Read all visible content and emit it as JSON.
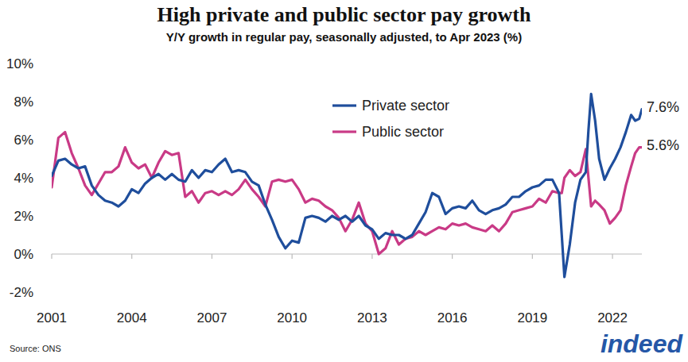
{
  "chart_data": {
    "type": "line",
    "title": "High private and public sector pay growth",
    "subtitle": "Y/Y growth in regular pay, seasonally adjusted, to Apr 2023 (%)",
    "source": "Source: ONS",
    "logo": "indeed",
    "x": [
      2001.0,
      2001.25,
      2001.5,
      2001.75,
      2002.0,
      2002.25,
      2002.5,
      2002.75,
      2003.0,
      2003.25,
      2003.5,
      2003.75,
      2004.0,
      2004.25,
      2004.5,
      2004.75,
      2005.0,
      2005.25,
      2005.5,
      2005.75,
      2006.0,
      2006.25,
      2006.5,
      2006.75,
      2007.0,
      2007.25,
      2007.5,
      2007.75,
      2008.0,
      2008.25,
      2008.5,
      2008.75,
      2009.0,
      2009.25,
      2009.5,
      2009.75,
      2010.0,
      2010.25,
      2010.5,
      2010.75,
      2011.0,
      2011.25,
      2011.5,
      2011.75,
      2012.0,
      2012.25,
      2012.5,
      2012.75,
      2013.0,
      2013.25,
      2013.5,
      2013.75,
      2014.0,
      2014.25,
      2014.5,
      2014.75,
      2015.0,
      2015.25,
      2015.5,
      2015.75,
      2016.0,
      2016.25,
      2016.5,
      2016.75,
      2017.0,
      2017.25,
      2017.5,
      2017.75,
      2018.0,
      2018.25,
      2018.5,
      2018.75,
      2019.0,
      2019.25,
      2019.5,
      2019.75,
      2020.0,
      2020.1,
      2020.2,
      2020.4,
      2020.6,
      2020.8,
      2021.0,
      2021.1,
      2021.2,
      2021.35,
      2021.5,
      2021.7,
      2021.9,
      2022.1,
      2022.3,
      2022.5,
      2022.7,
      2022.85,
      2023.0,
      2023.1
    ],
    "series": [
      {
        "name": "Private sector",
        "color": "#1f4e9c",
        "values": [
          4.1,
          4.9,
          5.0,
          4.7,
          4.5,
          4.6,
          3.6,
          3.1,
          2.8,
          2.7,
          2.5,
          2.8,
          3.4,
          3.2,
          3.7,
          4.0,
          4.2,
          3.9,
          4.2,
          3.9,
          3.8,
          4.4,
          4.0,
          4.4,
          4.3,
          4.7,
          5.0,
          4.3,
          4.4,
          4.3,
          3.8,
          3.6,
          2.6,
          1.8,
          0.9,
          0.3,
          0.7,
          0.6,
          1.9,
          2.0,
          1.9,
          1.7,
          2.0,
          1.8,
          2.0,
          1.7,
          2.0,
          1.5,
          1.3,
          0.8,
          1.1,
          1.0,
          1.0,
          0.8,
          1.0,
          1.6,
          2.2,
          3.2,
          3.0,
          2.1,
          2.4,
          2.5,
          2.4,
          2.8,
          2.3,
          2.1,
          2.3,
          2.4,
          2.6,
          3.0,
          3.0,
          3.3,
          3.5,
          3.6,
          3.9,
          3.9,
          3.2,
          1.0,
          -1.2,
          0.5,
          2.7,
          3.9,
          4.3,
          6.5,
          8.4,
          7.0,
          5.0,
          3.9,
          4.5,
          5.0,
          5.6,
          6.4,
          7.3,
          7.0,
          7.1,
          7.6
        ]
      },
      {
        "name": "Public sector",
        "color": "#c93a86",
        "values": [
          3.5,
          6.1,
          6.4,
          5.3,
          4.5,
          3.6,
          3.1,
          3.7,
          4.3,
          4.3,
          4.6,
          5.6,
          4.8,
          4.5,
          4.7,
          4.0,
          4.8,
          5.4,
          5.2,
          5.3,
          3.0,
          3.3,
          2.7,
          3.2,
          3.3,
          3.1,
          3.3,
          3.1,
          3.4,
          3.9,
          3.4,
          3.0,
          2.5,
          3.8,
          3.9,
          3.8,
          3.9,
          3.4,
          2.7,
          2.9,
          2.8,
          2.5,
          2.3,
          1.9,
          1.2,
          1.8,
          2.7,
          1.6,
          1.2,
          0.0,
          0.3,
          1.2,
          0.5,
          0.8,
          0.9,
          1.2,
          1.0,
          1.2,
          1.4,
          1.3,
          1.6,
          1.5,
          1.6,
          1.4,
          1.3,
          1.2,
          1.5,
          1.2,
          1.6,
          2.2,
          2.3,
          2.4,
          2.5,
          2.9,
          2.7,
          3.3,
          3.2,
          3.2,
          4.0,
          4.4,
          4.1,
          4.3,
          5.5,
          4.0,
          2.5,
          2.8,
          2.6,
          2.3,
          1.6,
          1.9,
          2.3,
          3.6,
          4.6,
          5.3,
          5.6,
          5.6
        ]
      }
    ],
    "annotations": [
      {
        "text": "7.6%",
        "x": 2023.1,
        "y": 7.6
      },
      {
        "text": "5.6%",
        "x": 2023.1,
        "y": 5.6
      }
    ],
    "xlim": [
      2001,
      2023.1
    ],
    "xticks": [
      2001,
      2004,
      2007,
      2010,
      2013,
      2016,
      2019,
      2022
    ],
    "ylim": [
      -2,
      10
    ],
    "yticks": [
      {
        "value": -2,
        "label": "-2%"
      },
      {
        "value": 0,
        "label": "0%"
      },
      {
        "value": 2,
        "label": "2%"
      },
      {
        "value": 4,
        "label": "4%"
      },
      {
        "value": 6,
        "label": "6%"
      },
      {
        "value": 8,
        "label": "8%"
      },
      {
        "value": 10,
        "label": "10%"
      }
    ],
    "grid": false,
    "legend": "top"
  }
}
